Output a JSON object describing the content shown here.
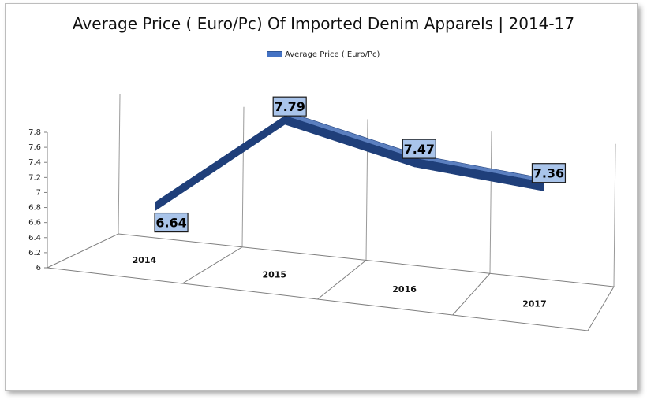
{
  "chart_data": {
    "type": "line",
    "title": "Average Price ( Euro/Pc) Of Imported Denim Apparels | 2014-17",
    "categories": [
      "2014",
      "2015",
      "2016",
      "2017"
    ],
    "series": [
      {
        "name": "Average Price ( Euro/Pc)",
        "values": [
          6.64,
          7.79,
          7.47,
          7.36
        ]
      }
    ],
    "data_labels": [
      "6.64",
      "7.79",
      "7.47",
      "7.36"
    ],
    "ylim": [
      6,
      7.8
    ],
    "yticks": [
      "7.8",
      "7.6",
      "7.4",
      "7.2",
      "7",
      "6.8",
      "6.6",
      "6.4",
      "6.2",
      "6"
    ],
    "xlabel": "",
    "ylabel": "",
    "grid": true,
    "legend_position": "top",
    "colors": {
      "series_top": "#5b7fbf",
      "series_front": "#1f3f7a",
      "label_fill": "#a9c4ea",
      "gridline": "#9a9a9a"
    }
  }
}
